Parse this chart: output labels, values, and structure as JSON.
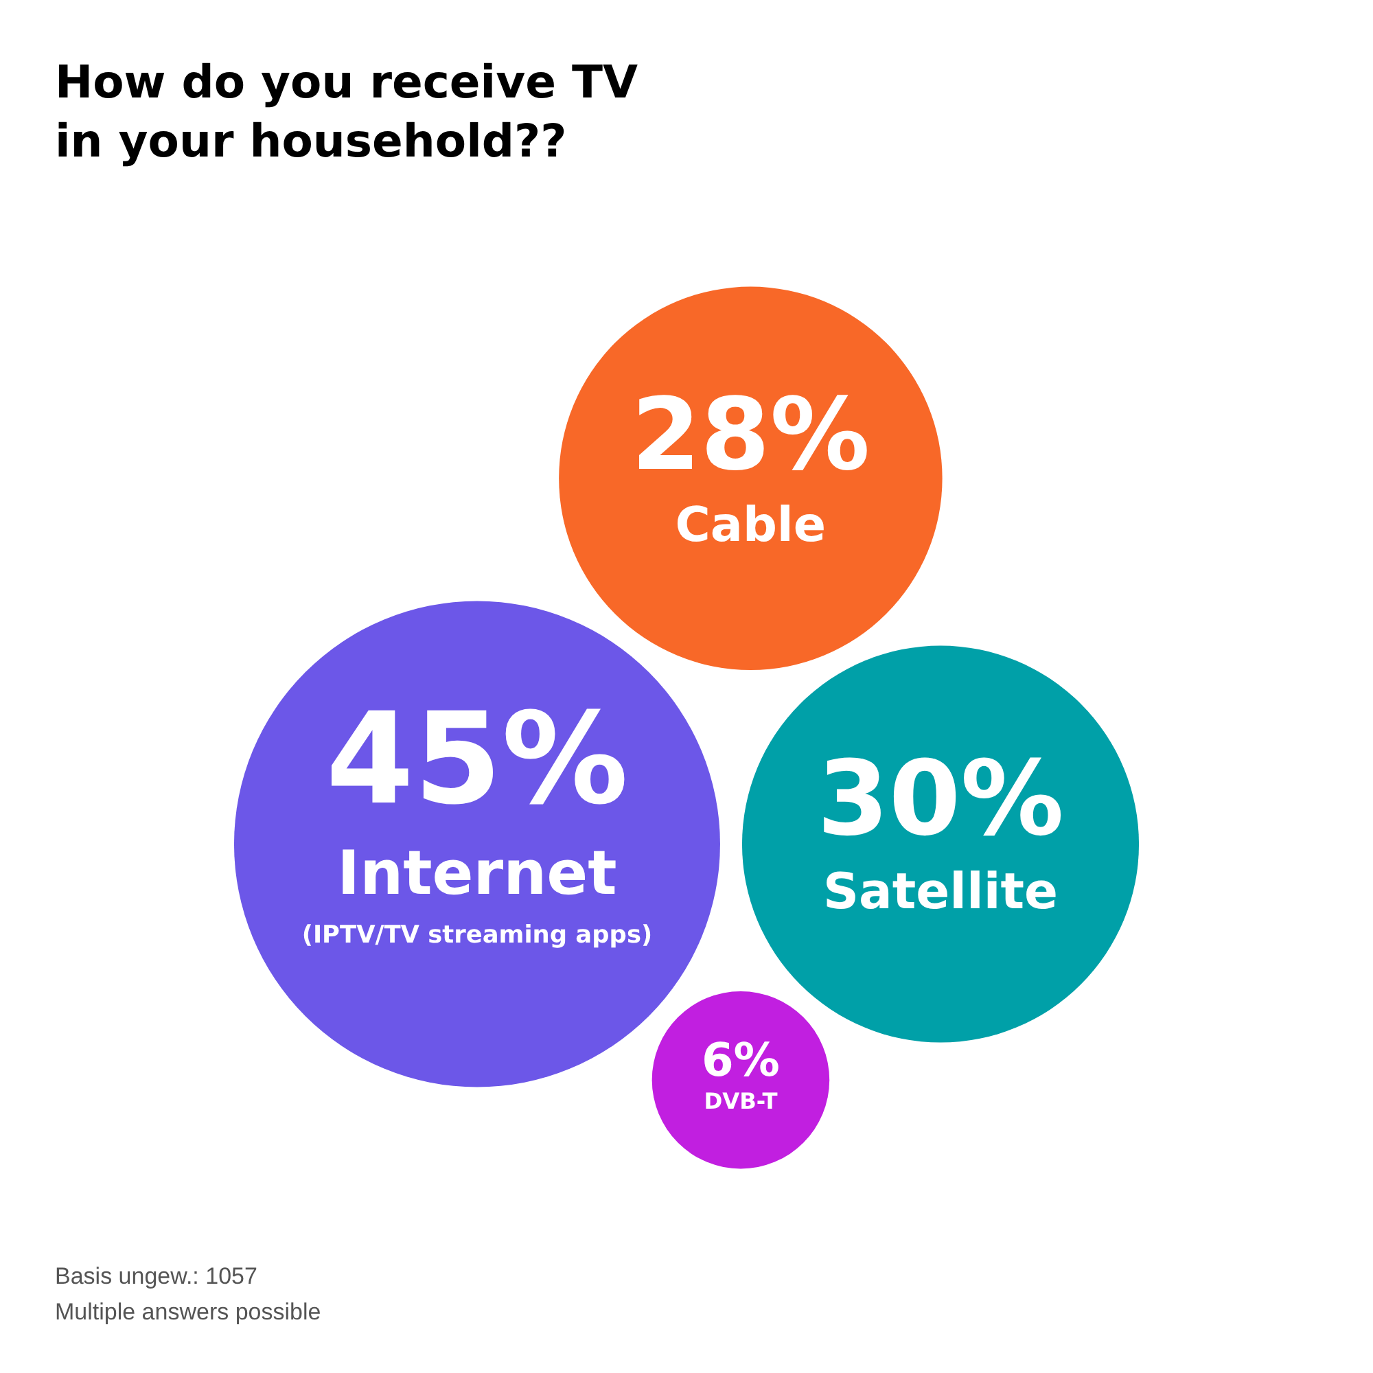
{
  "chart_data": {
    "type": "other",
    "title": "How do you receive TV in your household??",
    "categories": [
      "Internet",
      "Satellite",
      "DVB-T",
      "Cable"
    ],
    "values": [
      45,
      30,
      6,
      28
    ],
    "value_labels": [
      "45%",
      "30%",
      "6%",
      "28%"
    ],
    "colors": [
      "#6c57e8",
      "#00a0a8",
      "#c11fe0",
      "#f86828"
    ],
    "annotations": [
      {
        "text": "(IPTV/TV streaming apps)",
        "x": "Internet"
      },
      "Basis ungew.: 1057",
      "Multiple answers possible"
    ]
  }
}
